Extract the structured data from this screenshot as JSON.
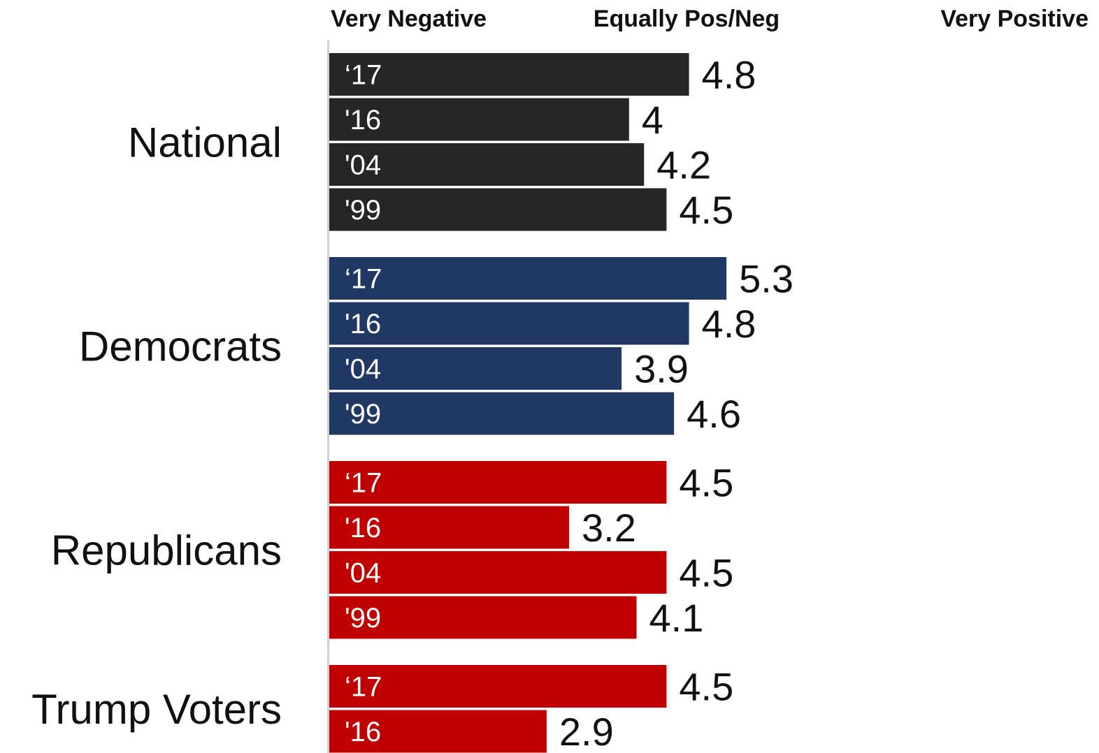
{
  "chart_data": {
    "type": "bar",
    "orientation": "horizontal",
    "scale_labels": [
      "Very Negative",
      "Equally Pos/Neg",
      "Very Positive"
    ],
    "xlim": [
      1,
      10
    ],
    "grid": false,
    "legend": "none",
    "groups": [
      {
        "name": "National",
        "color": "#262626",
        "bars": [
          {
            "year": "‘17",
            "value": 4.8,
            "label": "4.8"
          },
          {
            "year": "'16",
            "value": 4.0,
            "label": "4"
          },
          {
            "year": "'04",
            "value": 4.2,
            "label": "4.2"
          },
          {
            "year": "'99",
            "value": 4.5,
            "label": "4.5"
          }
        ]
      },
      {
        "name": "Democrats",
        "color": "#203864",
        "bars": [
          {
            "year": "‘17",
            "value": 5.3,
            "label": "5.3"
          },
          {
            "year": "'16",
            "value": 4.8,
            "label": "4.8"
          },
          {
            "year": "'04",
            "value": 3.9,
            "label": "3.9"
          },
          {
            "year": "'99",
            "value": 4.6,
            "label": "4.6"
          }
        ]
      },
      {
        "name": "Republicans",
        "color": "#c00000",
        "bars": [
          {
            "year": "‘17",
            "value": 4.5,
            "label": "4.5"
          },
          {
            "year": "'16",
            "value": 3.2,
            "label": "3.2"
          },
          {
            "year": "'04",
            "value": 4.5,
            "label": "4.5"
          },
          {
            "year": "'99",
            "value": 4.1,
            "label": "4.1"
          }
        ]
      },
      {
        "name": "Trump Voters",
        "color": "#c00000",
        "bars": [
          {
            "year": "‘17",
            "value": 4.5,
            "label": "4.5"
          },
          {
            "year": "'16",
            "value": 2.9,
            "label": "2.9"
          }
        ]
      }
    ]
  }
}
